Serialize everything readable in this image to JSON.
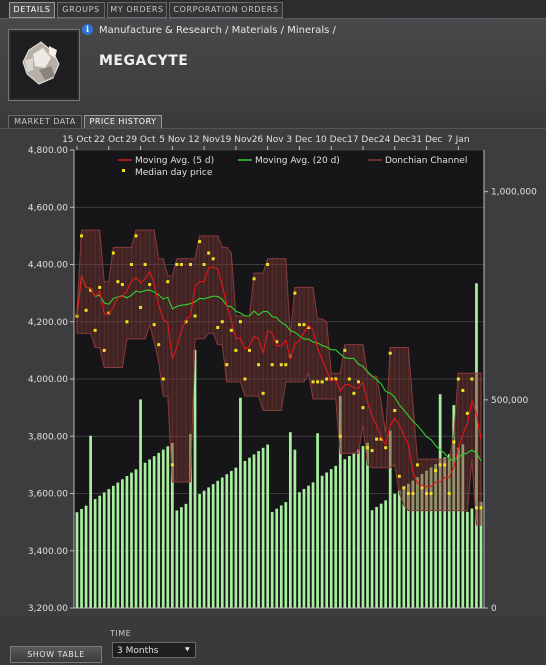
{
  "tabs": [
    {
      "label": "DETAILS",
      "active": true
    },
    {
      "label": "GROUPS",
      "active": false
    },
    {
      "label": "MY ORDERS",
      "active": false
    },
    {
      "label": "CORPORATION ORDERS",
      "active": false
    }
  ],
  "header": {
    "info_icon": "i",
    "breadcrumb": "Manufacture & Research / Materials / Minerals /",
    "item_name": "MEGACYTE",
    "item_icon": "megacyte-mineral-icon"
  },
  "subtabs": [
    {
      "label": "MARKET DATA",
      "active": false
    },
    {
      "label": "PRICE HISTORY",
      "active": true
    }
  ],
  "bottom": {
    "show_table_label": "SHOW TABLE",
    "time_label": "TIME",
    "time_value": "3 Months"
  },
  "colors": {
    "ma5": "#e01818",
    "ma20": "#30d030",
    "donchian": "#8a3a3a",
    "median": "#f0e020",
    "volume": "#a8f0a0",
    "plot_bg": "#161619"
  },
  "chart_data": {
    "type": "line",
    "x_ticks": [
      "15 Oct",
      "22 Oct",
      "29 Oct",
      "5 Nov",
      "12 Nov",
      "19 Nov",
      "26 Nov",
      "3 Dec",
      "10 Dec",
      "17 Dec",
      "24 Dec",
      "31 Dec",
      "7 Jan"
    ],
    "y_ticks": [
      "4,800.00",
      "4,600.00",
      "4,400.00",
      "4,200.00",
      "4,000.00",
      "3,800.00",
      "3,600.00",
      "3,400.00",
      "3,200.00"
    ],
    "ylim": [
      3200,
      4800
    ],
    "volume_ticks": [
      "1,000,000",
      "500,000",
      "0"
    ],
    "volume_ylim": [
      0,
      1100000
    ],
    "legend": [
      "Moving Avg. (5 d)",
      "Moving Avg. (20 d)",
      "Donchian Channel",
      "Median day price"
    ],
    "grid": true,
    "days": 90,
    "median": [
      4220,
      4500,
      4240,
      4310,
      4170,
      4320,
      4100,
      4230,
      4440,
      4340,
      4330,
      4200,
      4400,
      4500,
      4250,
      4400,
      4330,
      4190,
      4120,
      4000,
      4340,
      3700,
      4400,
      4400,
      4200,
      4400,
      4220,
      4480,
      4400,
      4440,
      4420,
      4180,
      4200,
      4050,
      4170,
      4100,
      4200,
      4000,
      4100,
      4350,
      4050,
      3950,
      4400,
      4050,
      4130,
      4050,
      4050,
      4080,
      4300,
      4190,
      4190,
      4180,
      3990,
      3990,
      3990,
      4000,
      4000,
      4000,
      3800,
      4100,
      4000,
      3950,
      3990,
      3900,
      3760,
      3750,
      3790,
      3790,
      3760,
      4090,
      3890,
      3660,
      3620,
      3600,
      3600,
      3700,
      3620,
      3600,
      3600,
      3680,
      3700,
      3700,
      3600,
      3780,
      4000,
      3960,
      3880,
      4000,
      3550,
      3550
    ]
  }
}
